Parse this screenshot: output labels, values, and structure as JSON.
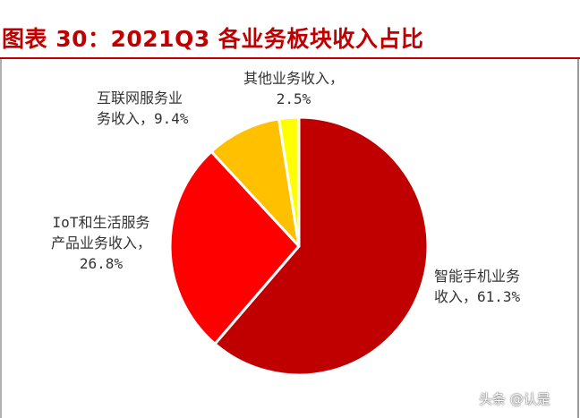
{
  "chart_data": {
    "type": "pie",
    "title": "图表 30：2021Q3 各业务板块收入占比",
    "slices": [
      {
        "lines": [
          "智能手机业务",
          "收入，61.3%"
        ],
        "value": 61.3,
        "color": "#c00000"
      },
      {
        "lines": [
          "IoT和生活服务",
          "产品业务收入，",
          "26.8%"
        ],
        "value": 26.8,
        "color": "#ff0000"
      },
      {
        "lines": [
          "互联网服务业",
          "务收入，9.4%"
        ],
        "value": 9.4,
        "color": "#ffc000"
      },
      {
        "lines": [
          "其他业务收入，",
          "2.5%"
        ],
        "value": 2.5,
        "color": "#ffff00"
      }
    ],
    "start_angle_deg": 0,
    "direction": "clockwise",
    "legend": "none"
  },
  "watermark": "头条 @认是"
}
